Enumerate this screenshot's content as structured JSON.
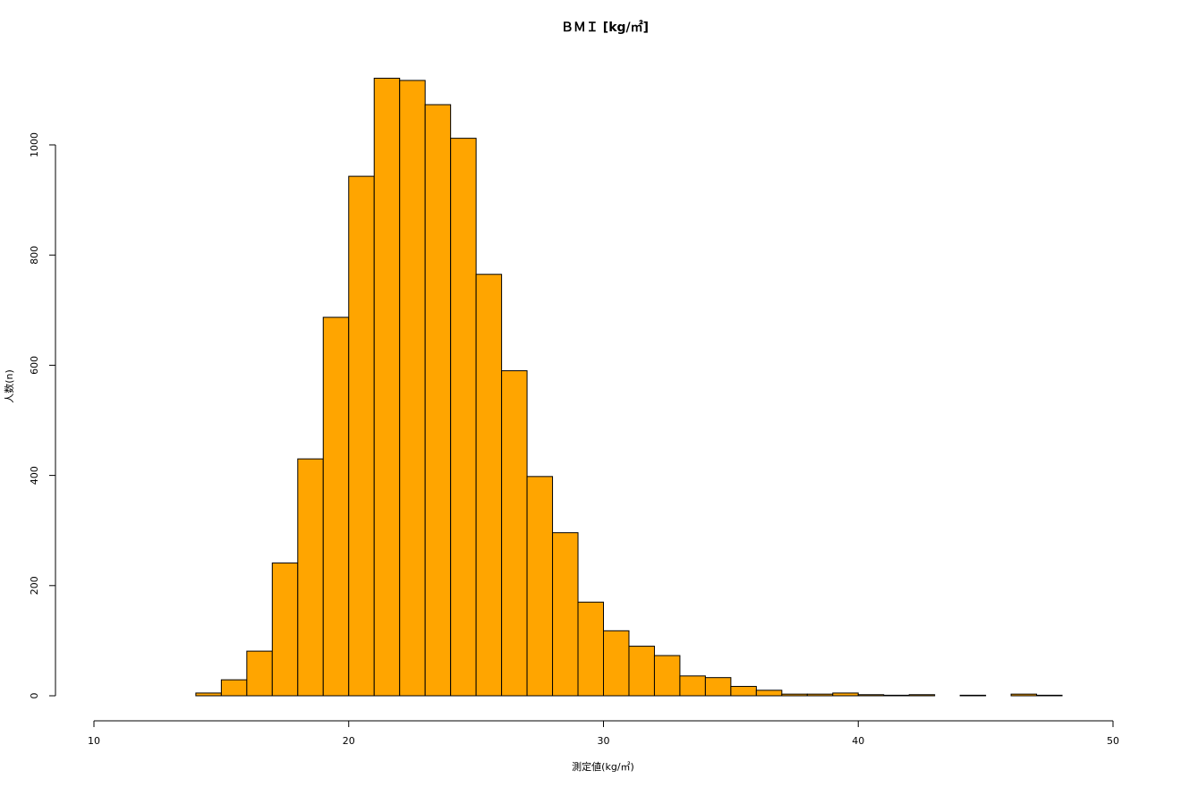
{
  "chart_data": {
    "type": "bar",
    "title": "ＢＭＩ [kg/㎡]",
    "xlabel": "測定値(kg/㎡)",
    "ylabel": "人数(n)",
    "bin_width": 1,
    "x_start": 10,
    "bins_x_start": [
      10,
      11,
      12,
      13,
      14,
      15,
      16,
      17,
      18,
      19,
      20,
      21,
      22,
      23,
      24,
      25,
      26,
      27,
      28,
      29,
      30,
      31,
      32,
      33,
      34,
      35,
      36,
      37,
      38,
      39,
      40,
      41,
      42,
      43,
      44,
      45,
      46,
      47
    ],
    "values": [
      0,
      0,
      0,
      0,
      5,
      29,
      81,
      241,
      430,
      687,
      943,
      1121,
      1117,
      1073,
      1012,
      765,
      590,
      398,
      296,
      170,
      118,
      90,
      73,
      36,
      33,
      17,
      10,
      3,
      3,
      5,
      2,
      1,
      2,
      0,
      1,
      0,
      3,
      1
    ],
    "xlim": [
      10,
      50
    ],
    "ylim": [
      0,
      1125
    ],
    "x_ticks": [
      10,
      20,
      30,
      40,
      50
    ],
    "y_ticks": [
      0,
      200,
      400,
      600,
      800,
      1000
    ],
    "colors": {
      "bar_fill": "#FFA500",
      "bar_stroke": "#000000"
    },
    "grid": false,
    "legend": "none"
  }
}
